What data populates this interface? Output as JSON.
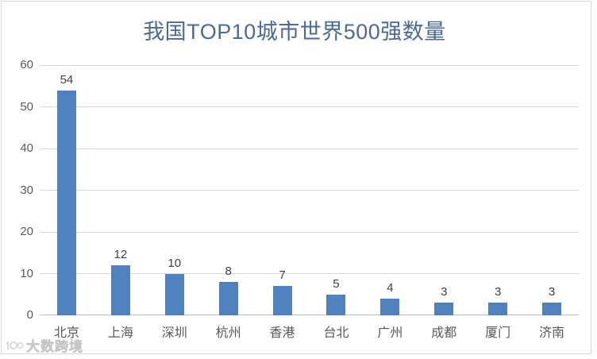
{
  "chart_data": {
    "type": "bar",
    "title": "我国TOP10城市世界500强数量",
    "categories": [
      "北京",
      "上海",
      "深圳",
      "杭州",
      "香港",
      "台北",
      "广州",
      "成都",
      "厦门",
      "济南"
    ],
    "values": [
      54,
      12,
      10,
      8,
      7,
      5,
      4,
      3,
      3,
      3
    ],
    "xlabel": "",
    "ylabel": "",
    "ylim": [
      0,
      60
    ],
    "yticks": [
      0,
      10,
      20,
      30,
      40,
      50,
      60
    ],
    "grid": "horizontal",
    "legend": "none",
    "data_labels": true
  },
  "watermark": {
    "text": "大数跨境"
  },
  "colors": {
    "bar": "#4E81BD",
    "title": "#4C6A94",
    "axis_text": "#595959",
    "value_label": "#404040",
    "gridline": "#D9D9D9",
    "axis_line": "#C0C0C0",
    "background": "#FFFFFF",
    "border": "#D8D8D8"
  }
}
